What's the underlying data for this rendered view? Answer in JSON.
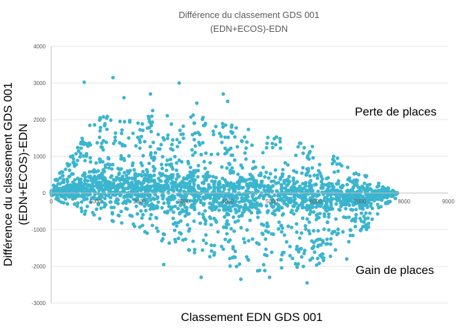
{
  "chart_data": {
    "type": "scatter",
    "title": "Différence du classement GDS 001",
    "subtitle": "(EDN+ECOS)-EDN",
    "xlabel": "Classement EDN GDS 001",
    "ylabel": "Différence du classement GDS 001 (EDN+ECOS)-EDN",
    "xlim": [
      0,
      9000
    ],
    "ylim": [
      -3000,
      4000
    ],
    "x_ticks": [
      "0",
      "1000",
      "2000",
      "3000",
      "4000",
      "5000",
      "6000",
      "7000",
      "8000",
      "9000"
    ],
    "y_ticks": [
      "4000",
      "3000",
      "2000",
      "1000",
      "0",
      "-1000",
      "-2000",
      "-3000"
    ],
    "grid": "horizontal",
    "color": "#3BB5CF",
    "annotations": [
      {
        "text": "Perte de places",
        "x": 7000,
        "y": 2200
      },
      {
        "text": "Gain de places",
        "x": 7000,
        "y": -2100
      }
    ],
    "sample_points": [
      {
        "x": 750,
        "y": 3020
      },
      {
        "x": 1400,
        "y": 3150
      },
      {
        "x": 2900,
        "y": 3000
      },
      {
        "x": 3900,
        "y": 2700
      },
      {
        "x": 1650,
        "y": 2600
      },
      {
        "x": 2250,
        "y": 2700
      },
      {
        "x": 4000,
        "y": 2500
      },
      {
        "x": 3300,
        "y": 2450
      },
      {
        "x": 2300,
        "y": 2250
      },
      {
        "x": 5800,
        "y": -2450
      },
      {
        "x": 4300,
        "y": -2350
      },
      {
        "x": 3400,
        "y": -2300
      },
      {
        "x": 4950,
        "y": -2300
      },
      {
        "x": 2550,
        "y": -1950
      },
      {
        "x": 6700,
        "y": -1800
      },
      {
        "x": 7800,
        "y": -150
      },
      {
        "x": 7850,
        "y": 0
      },
      {
        "x": 0,
        "y": 0
      }
    ],
    "envelope": [
      {
        "x": 0,
        "upper": 200,
        "lower": -200
      },
      {
        "x": 1000,
        "upper": 2100,
        "lower": -700
      },
      {
        "x": 2000,
        "upper": 2100,
        "lower": -1000
      },
      {
        "x": 3000,
        "upper": 2200,
        "lower": -1600
      },
      {
        "x": 4000,
        "upper": 1900,
        "lower": -2000
      },
      {
        "x": 5000,
        "upper": 1600,
        "lower": -2200
      },
      {
        "x": 6000,
        "upper": 1300,
        "lower": -2000
      },
      {
        "x": 7000,
        "upper": 600,
        "lower": -1200
      },
      {
        "x": 7850,
        "upper": 0,
        "lower": 0
      }
    ],
    "n_points": 2600
  }
}
